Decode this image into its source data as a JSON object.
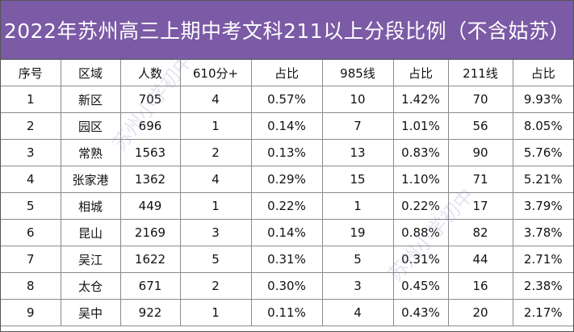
{
  "title": "2022年苏州高三上期中考文科211以上分段比例（不含姑苏）",
  "headers": [
    "序号",
    "区域",
    "人数",
    "610分+",
    "占比",
    "985线",
    "占比",
    "211线",
    "占比"
  ],
  "rows": [
    [
      "1",
      "新区",
      "705",
      "4",
      "0.57%",
      "10",
      "1.42%",
      "70",
      "9.93%"
    ],
    [
      "2",
      "园区",
      "696",
      "1",
      "0.14%",
      "7",
      "1.01%",
      "56",
      "8.05%"
    ],
    [
      "3",
      "常熟",
      "1563",
      "2",
      "0.13%",
      "13",
      "0.83%",
      "90",
      "5.76%"
    ],
    [
      "4",
      "张家港",
      "1362",
      "4",
      "0.29%",
      "15",
      "1.10%",
      "71",
      "5.21%"
    ],
    [
      "5",
      "相城",
      "449",
      "1",
      "0.22%",
      "1",
      "0.22%",
      "17",
      "3.79%"
    ],
    [
      "6",
      "昆山",
      "2169",
      "3",
      "0.14%",
      "19",
      "0.88%",
      "82",
      "3.78%"
    ],
    [
      "7",
      "吴江",
      "1622",
      "5",
      "0.31%",
      "5",
      "0.31%",
      "44",
      "2.71%"
    ],
    [
      "8",
      "太仓",
      "671",
      "2",
      "0.30%",
      "3",
      "0.45%",
      "16",
      "2.38%"
    ],
    [
      "9",
      "吴中",
      "922",
      "1",
      "0.11%",
      "4",
      "0.43%",
      "20",
      "2.17%"
    ]
  ],
  "watermarks": [
    "苏州小学初中",
    "苏州小学初中"
  ],
  "colors": {
    "title_background": "#7b5aa6",
    "title_text": "#ffffff"
  }
}
